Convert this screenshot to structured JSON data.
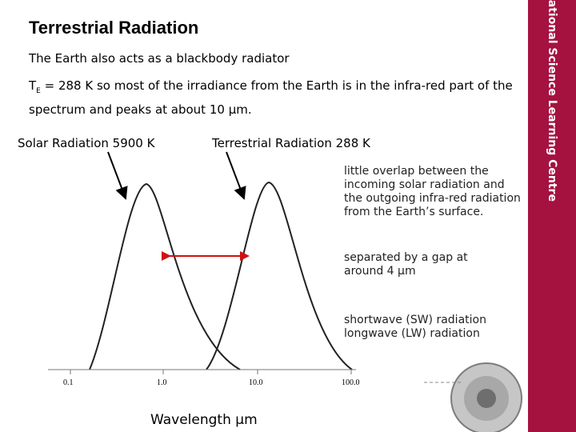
{
  "title": "Terrestrial Radiation",
  "intro": "The Earth also acts as a blackbody radiator",
  "paragraph": {
    "symbol": "T",
    "subscript": "E",
    "rest": " = 288 K so most of the irradiance from the Earth is in the infra-red part of the spectrum and peaks at about 10 μm."
  },
  "labels": {
    "solar": "Solar Radiation 5900 K",
    "terrestrial": "Terrestrial Radiation 288 K"
  },
  "notes": {
    "overlap": "little overlap between the incoming solar radiation and the outgoing infra-red radiation from the Earth’s surface.",
    "gap": "separated by a gap at around 4 μm",
    "sw": "shortwave (SW) radiation",
    "lw": "longwave (LW) radiation"
  },
  "axis": {
    "ticks": [
      "0.1",
      "1.0",
      "10.0",
      "100.0"
    ],
    "title": "Wavelength μm"
  },
  "sidebar": {
    "brand": "National Science Learning Centre"
  },
  "colors": {
    "sidebar": "#a5123f",
    "arrow": "#d01010"
  }
}
